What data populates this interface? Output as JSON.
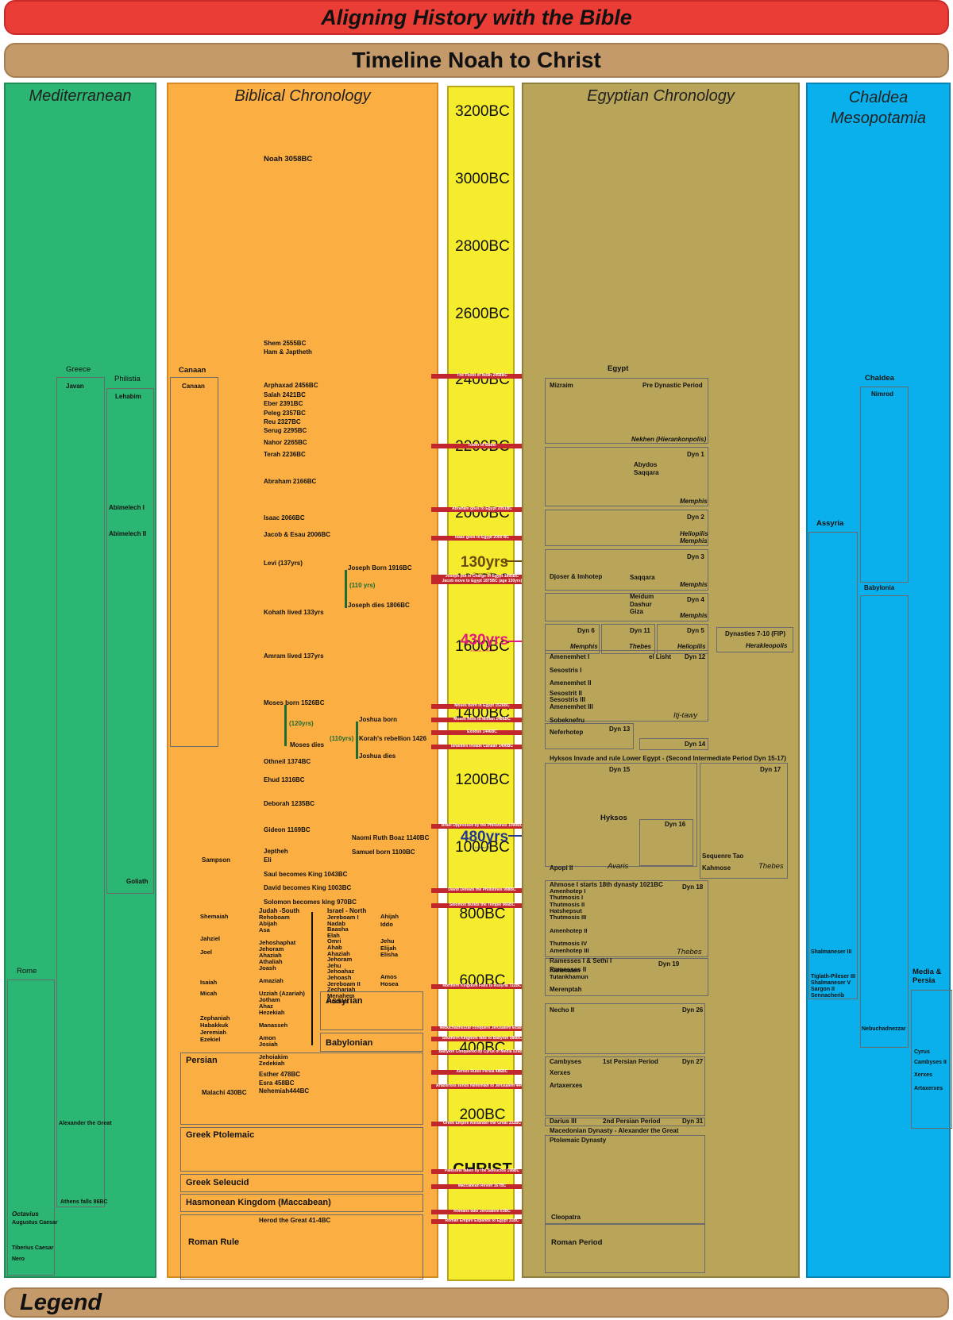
{
  "title": "Aligning History with the Bible",
  "subtitle": "Timeline Noah to Christ",
  "legend": "Legend",
  "columns": {
    "mediterranean": "Mediterranean",
    "biblical": "Biblical Chronology",
    "egyptian": "Egyptian Chronology",
    "chaldea": "Chaldea Mesopotamia"
  },
  "timeline": {
    "years": [
      "3200BC",
      "3000BC",
      "2800BC",
      "2600BC",
      "2400BC",
      "2200BC",
      "2000BC",
      "1800BC",
      "1600BC",
      "1400BC",
      "1200BC",
      "1000BC",
      "800BC",
      "600BC",
      "400BC",
      "200BC",
      "CHRIST"
    ],
    "spans": {
      "s130": "130yrs",
      "s430": "430yrs",
      "s480": "480yrs",
      "s130_note": "Genesis 47:9",
      "s430_note": "Exodus 12:40-41",
      "s480_note": "I Kings 6:1"
    },
    "events": [
      "The Flood of Noah 2458BC",
      "Tower of Babel",
      "Abraham goes to Egypt 2091BC",
      "Isaac goes to Egypt 2000 BC",
      "Joseph put in Charge of Egypt 1885BC",
      "Jacob move to Egypt 1875BC (age 130yrs)",
      "Moses Born in Egypt 1526BC",
      "Moses flees to Midian 1486BC",
      "Exodus 1446BC",
      "Israelites Invade Canaan 1406BC",
      "Israel Oppressed by the Philistines 1090BC",
      "David Defeats the Philistines 998BC",
      "Solomon Builds the Temple 966BC",
      "Northern Kingdom Falls to Assyria 722BC",
      "Nebuchadnezzar conquers Jerusalem 605BC",
      "Southern Kingdom falls to Babylon 586BC",
      "Babylon Conquered by Cyrus of Media 539BC",
      "Xerxes Rules Persia 486BC",
      "Artaxerxes sends Nehemiah to Jerusalem 444BC",
      "Greek Empire Alexander the Great 332BC",
      "Palestine taken by the Seleucids 198BC",
      "Maccabean Revolt 167BC",
      "Romans take Jerusalem 63BC",
      "Roman Empire Expands to Egypt 31BC"
    ]
  },
  "mediterranean": {
    "greece": "Greece",
    "javan": "Javan",
    "philistia": "Philistia",
    "lehabim": "Lehabim",
    "abimelech1": "Abimelech I",
    "abimelech2": "Abimelech II",
    "goliath": "Goliath",
    "rome": "Rome",
    "alexander": "Alexander the Great",
    "athens": "Athens falls 86BC",
    "octavius": "Octavius",
    "augustus": "Augustus Caesar",
    "tiberius": "Tiberius Caesar",
    "nero": "Nero"
  },
  "biblical": {
    "noah": "Noah 3058BC",
    "shem": "Shem 2555BC",
    "ham": "Ham & Japtheth",
    "canaan_head": "Canaan",
    "canaan": "Canaan",
    "arphaxad": "Arphaxad 2456BC",
    "salah": "Salah 2421BC",
    "eber": "Eber 2391BC",
    "peleg": "Peleg 2357BC",
    "reu": "Reu 2327BC",
    "serug": "Serug 2295BC",
    "nahor": "Nahor 2265BC",
    "terah": "Terah 2236BC",
    "abraham": "Abraham 2166BC",
    "isaac": "Isaac 2066BC",
    "jacob": "Jacob & Esau 2006BC",
    "levi": "Levi (137yrs)",
    "joseph_born": "Joseph Born 1916BC",
    "yrs110a": "(110 yrs)",
    "joseph_dies": "Joseph dies 1806BC",
    "kohath": "Kohath lived 133yrs",
    "amram": "Amram lived 137yrs",
    "moses_born": "Moses born 1526BC",
    "yrs120": "(120yrs)",
    "moses_dies": "Moses dies",
    "joshua_born": "Joshua born",
    "yrs110b": "(110yrs)",
    "korah": "Korah's rebellion 1426",
    "joshua_dies": "Joshua dies",
    "othneil": "Othneil 1374BC",
    "ehud": "Ehud 1316BC",
    "deborah": "Deborah 1235BC",
    "gideon": "Gideon 1169BC",
    "naomi": "Naomi Ruth Boaz 1140BC",
    "jeptheh": "Jeptheh",
    "eli": "Eli",
    "samuel": "Samuel born 1100BC",
    "sampson": "Sampson",
    "saul": "Saul becomes King 1043BC",
    "david": "David becomes King 1003BC",
    "solomon": "Solomon becomes king 970BC",
    "judah_head": "Judah -South",
    "israel_head": "Israel - North",
    "judah_kings": [
      "Rehoboam",
      "Abijah",
      "Asa",
      "",
      "Jehoshaphat",
      "Jehoram",
      "Ahaziah",
      "Athaliah",
      "Joash",
      "",
      "Amaziah",
      "",
      "Uzziah (Azariah)",
      "Jotham",
      "Ahaz",
      "Hezekiah",
      "",
      "Manasseh",
      "",
      "Amon",
      "Josiah",
      "",
      "Jehoiakim",
      "Zedekiah"
    ],
    "israel_kings": [
      "Jereboam I",
      "Nadab",
      "Baasha",
      "Elah",
      "Omri",
      "Ahab",
      "Ahaziah",
      "Jehoram",
      "Jehu",
      "Jehoahaz",
      "Jehoash",
      "Jereboam II",
      "Zechariah",
      "Menahem",
      "Hoshea"
    ],
    "prophets_left": {
      "shemaiah": "Shemaiah",
      "jahziel": "Jahziel",
      "joel": "Joel",
      "isaiah": "Isaiah",
      "micah": "Micah",
      "zephaniah": "Zephaniah",
      "habakkuk": "Habakkuk",
      "jeremiah": "Jeremiah",
      "ezekiel": "Ezekiel"
    },
    "prophets_right": {
      "ahijah": "Ahijah",
      "iddo": "Iddo",
      "jehu": "Jehu",
      "elijah": "Elijah",
      "elisha": "Elisha",
      "amos": "Amos",
      "hosea": "Hosea"
    },
    "assyrian": "Assyrian",
    "babylonian": "Babylonian",
    "persian": "Persian",
    "esther": "Esther 478BC",
    "ezra": "Esra 458BC",
    "nehemiah": "Nehemiah444BC",
    "malachi": "Malachi 430BC",
    "greek_ptolemaic": "Greek Ptolemaic",
    "greek_seleucid": "Greek Seleucid",
    "hasmonean": "Hasmonean Kingdom (Maccabean)",
    "herod": "Herod the Great 41-4BC",
    "roman_rule": "Roman Rule"
  },
  "egyptian": {
    "egypt": "Egypt",
    "mizraim": "Mizraim",
    "predynastic": "Pre Dynastic Period",
    "nekhen": "Nekhen (Hierankonpolis)",
    "dyn1": "Dyn 1",
    "abydos": "Abydos",
    "saqqara": "Saqqara",
    "memphis": "Memphis",
    "dyn2": "Dyn 2",
    "heliopilis": "Heliopilis",
    "dyn3": "Dyn 3",
    "djoser": "Djoser & Imhotep",
    "saqqara2": "Saqqara",
    "dyn4": "Dyn 4",
    "meidum": "Meidum",
    "dashur": "Dashur",
    "giza": "Giza",
    "dyn6": "Dyn 6",
    "dyn11": "Dyn 11",
    "thebes": "Thebes",
    "dyn5": "Dyn 5",
    "heliopilis2": "Heliopilis",
    "dyn710": "Dynasties 7-10 (FIP)",
    "herakleopolis": "Herakleopolis",
    "amenemhet1": "Amenemhet I",
    "ellisht": "el Lisht",
    "dyn12": "Dyn 12",
    "sesostris1": "Sesostris I",
    "amenemhet2": "Amenemhet II",
    "sesostris2": "Sesostrit II",
    "sesostris3": "Sesostris III",
    "amenemhet3": "Amenemhet III",
    "sobeknefru": "Sobeknefru",
    "ittawy": "Itj-tawy",
    "neferhotep": "Neferhotep",
    "dyn13": "Dyn 13",
    "dyn14": "Dyn 14",
    "hyksos_head": "Hyksos Invade and rule Lower Egypt - (Second Intermediate Period  Dyn 15-17)",
    "dyn15": "Dyn 15",
    "dyn17": "Dyn 17",
    "hyksos": "Hyksos",
    "dyn16": "Dyn 16",
    "apopi": "Apopi II",
    "avaris": "Avaris",
    "sequenre": "Sequenre Tao",
    "kahmose": "Kahmose",
    "thebes2": "Thebes",
    "ahmose": "Ahmose I starts 18th dynasty 1021BC",
    "dyn18": "Dyn 18",
    "dyn18_list": [
      "Amenhotep I",
      "Thutmosis I",
      "Thutmosis II",
      "Hatshepsut",
      "Thutmosis III",
      "",
      "Amenhotep II",
      "",
      "Thutmosis IV",
      "Amenhotep III",
      "",
      "",
      "Akhenaten",
      "Tutankhamun"
    ],
    "thebes3": "Thebes",
    "ramesses": "Ramesses I & Sethi I",
    "dyn19": "Dyn 19",
    "ramesses2": "Ramesses II",
    "merenptah": "Merenptah",
    "necho": "Necho II",
    "dyn26": "Dyn 26",
    "cambyses": "Cambyses",
    "persian1": "1st Persian Period",
    "dyn27": "Dyn 27",
    "xerxes": "Xerxes",
    "artaxerxes": "Artaxerxes",
    "darius": "Darius III",
    "persian2": "2nd Persian Period",
    "dyn31": "Dyn 31",
    "macedonian": "Macedonian Dynasty - Alexander the Great",
    "ptolemaic": "Ptolemaic Dynasty",
    "cleopatra": "Cleopatra",
    "roman": "Roman Period"
  },
  "chaldea": {
    "chaldea": "Chaldea",
    "nimrod": "Nimrod",
    "assyria": "Assyria",
    "babylonia": "Babylonia",
    "shalmaneser3": "Shalmaneser III",
    "tiglath": "Tiglath-Pileser III",
    "shalmaneser5": "Shalmaneser V",
    "sargon": "Sargon II",
    "sennacherib": "Sennacherib",
    "nebuchadnezzar": "Nebuchadnezzar",
    "media": "Media & Persia",
    "cyrus": "Cyrus",
    "cambyses": "Cambyses II",
    "xerxes": "Xerxes",
    "artaxerxes": "Artaxerxes"
  },
  "colors": {
    "red": "#ea3d36",
    "tan": "#c59a6b",
    "green": "#2bb673",
    "orange": "#fbaf42",
    "yellow": "#f4ec2d",
    "olive": "#b9a559",
    "blue": "#0ab0ec",
    "event": "#c1272d"
  }
}
